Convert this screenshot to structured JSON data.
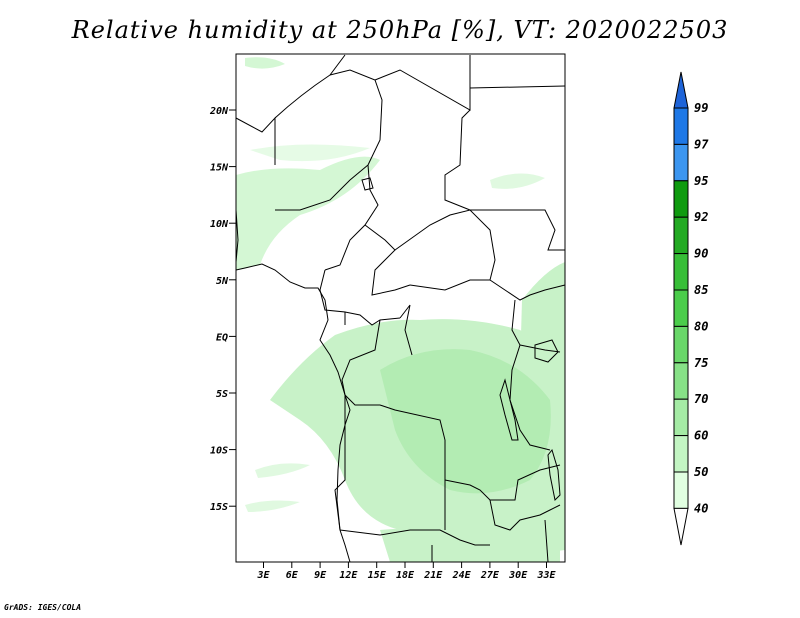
{
  "title": "Relative humidity at 250hPa [%], VT: 2020022503",
  "credit": "GrADS: IGES/COLA",
  "map": {
    "lat_labels": [
      "20N",
      "15N",
      "10N",
      "5N",
      "EQ",
      "5S",
      "10S",
      "15S"
    ],
    "lon_labels": [
      "3E",
      "6E",
      "9E",
      "12E",
      "15E",
      "18E",
      "21E",
      "24E",
      "27E",
      "30E",
      "33E"
    ]
  },
  "colorbar": {
    "levels": [
      "99",
      "97",
      "95",
      "92",
      "90",
      "85",
      "80",
      "75",
      "70",
      "60",
      "50",
      "40"
    ],
    "colors": [
      "#1e64d8",
      "#1e78e6",
      "#3c96f0",
      "#0f9b0f",
      "#23aa23",
      "#37be37",
      "#4bcd4b",
      "#69d769",
      "#87e187",
      "#a5eba5",
      "#c3f5c3",
      "#e1ffe1"
    ]
  }
}
